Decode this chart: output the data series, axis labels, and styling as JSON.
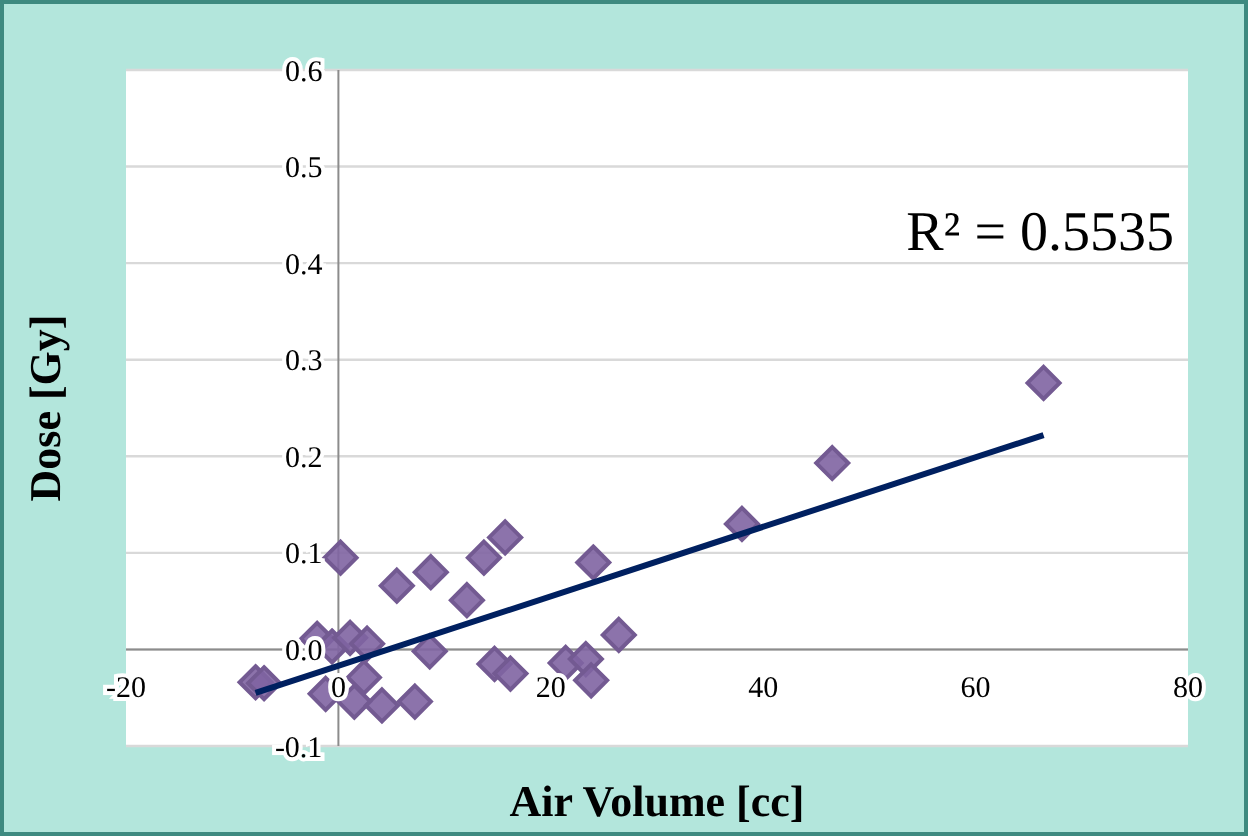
{
  "chart_data": {
    "type": "scatter",
    "xlabel": "Air Volume  [cc]",
    "ylabel": "Dose [Gy]",
    "xlim": [
      -20,
      80
    ],
    "ylim": [
      -0.1,
      0.6
    ],
    "xticks": [
      -20,
      0,
      20,
      40,
      60,
      80
    ],
    "yticks": [
      -0.1,
      {
        "value": 0,
        "label": "0.0"
      },
      0.1,
      0.2,
      0.3,
      0.4,
      0.5,
      0.6
    ],
    "grid": "y",
    "marker": "diamond",
    "annotations": [
      "R² = 0.5535"
    ],
    "series": [
      {
        "color": "#8064a2",
        "x": [
          -7.8,
          -7.0,
          -2.0,
          -0.6,
          0.2,
          -1.2,
          1.1,
          1.5,
          2.7,
          2.4,
          4.1,
          5.5,
          7.2,
          8.7,
          8.6,
          12.1,
          13.7,
          15.7,
          14.7,
          16.2,
          21.4,
          23.3,
          23.8,
          24.0,
          26.4,
          38.0,
          46.5,
          66.4
        ],
        "values": [
          -0.034,
          -0.035,
          0.011,
          0.003,
          0.095,
          -0.046,
          0.012,
          -0.054,
          0.006,
          -0.029,
          -0.058,
          0.066,
          -0.054,
          0.08,
          -0.002,
          0.051,
          0.095,
          0.116,
          -0.015,
          -0.025,
          -0.014,
          -0.01,
          -0.032,
          0.09,
          0.015,
          0.13,
          0.193,
          0.276
        ]
      },
      {
        "type": "line",
        "color": "#002060",
        "marker": "none",
        "x": [
          -7.8,
          66.4
        ],
        "values": [
          -0.045,
          0.222
        ]
      }
    ]
  }
}
